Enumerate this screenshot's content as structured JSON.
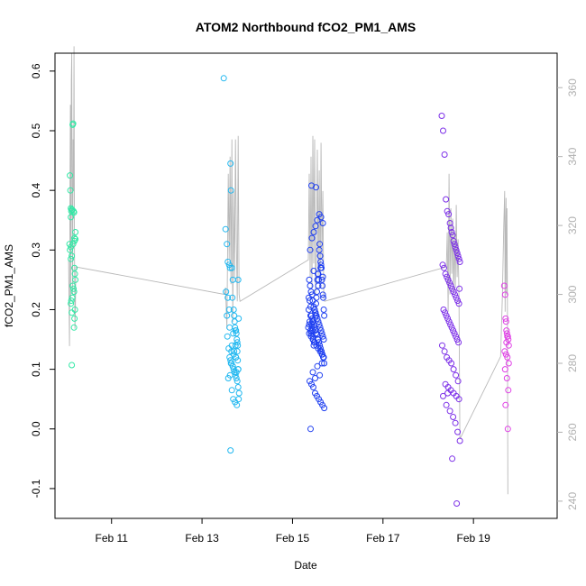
{
  "chart_data": {
    "type": "scatter",
    "title": "ATOM2 Northbound fCO2_PM1_AMS",
    "xlabel": "Date",
    "ylabel": "fCO2_PM1_AMS",
    "x_unit": "day of February",
    "x_ticks": [
      {
        "value": 11,
        "label": "Feb 11"
      },
      {
        "value": 13,
        "label": "Feb 13"
      },
      {
        "value": 15,
        "label": "Feb 15"
      },
      {
        "value": 17,
        "label": "Feb 17"
      },
      {
        "value": 19,
        "label": "Feb 19"
      }
    ],
    "xlim": [
      9.75,
      20.85
    ],
    "ylim": [
      -0.15,
      0.63
    ],
    "y_ticks": [
      -0.1,
      0.0,
      0.1,
      0.2,
      0.3,
      0.4,
      0.5,
      0.6
    ],
    "y_tick_labels": [
      "-0.1",
      "0.0",
      "0.1",
      "0.2",
      "0.3",
      "0.4",
      "0.5",
      "0.6"
    ],
    "y2lim": [
      235,
      370
    ],
    "y2_ticks": [
      240,
      260,
      280,
      300,
      320,
      340,
      360
    ],
    "y2_tick_labels": [
      "240",
      "260",
      "280",
      "300",
      "320",
      "340",
      "360"
    ],
    "grid": false,
    "legend": "none",
    "colors": {
      "g1": "#33e8a6",
      "g2": "#22b8f0",
      "g3": "#2040f0",
      "g4": "#7d30e8",
      "g5": "#e040e6",
      "trace": "#b8b8b8",
      "right_axis": "#b0b0b0"
    },
    "series": [
      {
        "color_key": "g1",
        "x": [
          10.08,
          10.09,
          10.1,
          10.1,
          10.11,
          10.12,
          10.13,
          10.14,
          10.15,
          10.16,
          10.17,
          10.18,
          10.2,
          10.2,
          10.07,
          10.08,
          10.1,
          10.12,
          10.15,
          10.18,
          10.18,
          10.19,
          10.1,
          10.14,
          10.16,
          10.17,
          10.19,
          10.11,
          10.13,
          10.1,
          10.12,
          10.18,
          10.17,
          10.12,
          10.2
        ],
        "y": [
          0.425,
          0.4,
          0.37,
          0.355,
          0.365,
          0.368,
          0.367,
          0.51,
          0.512,
          0.365,
          0.363,
          0.32,
          0.33,
          0.318,
          0.31,
          0.3,
          0.305,
          0.29,
          0.31,
          0.315,
          0.27,
          0.26,
          0.285,
          0.24,
          0.235,
          0.23,
          0.2,
          0.215,
          0.22,
          0.21,
          0.195,
          0.185,
          0.17,
          0.107,
          0.25
        ]
      },
      {
        "color_key": "g2",
        "x": [
          13.48,
          13.52,
          13.55,
          13.57,
          13.6,
          13.62,
          13.63,
          13.64,
          13.66,
          13.67,
          13.68,
          13.7,
          13.71,
          13.72,
          13.73,
          13.74,
          13.75,
          13.76,
          13.77,
          13.78,
          13.79,
          13.8,
          13.81,
          13.53,
          13.56,
          13.59,
          13.61,
          13.63,
          13.65,
          13.68,
          13.7,
          13.72,
          13.74,
          13.76,
          13.78,
          13.8,
          13.82,
          13.58,
          13.62,
          13.66,
          13.69,
          13.73,
          13.77,
          13.81,
          13.55,
          13.6,
          13.65,
          13.7,
          13.75,
          13.8,
          13.64,
          13.68,
          13.72,
          13.76,
          13.8,
          13.57,
          13.61,
          13.66,
          13.71,
          13.75,
          13.79,
          13.63,
          13.69,
          13.74,
          13.78
        ],
        "y": [
          0.588,
          0.335,
          0.31,
          0.28,
          0.275,
          0.27,
          0.445,
          0.4,
          0.27,
          0.22,
          0.25,
          0.2,
          0.19,
          0.18,
          0.17,
          0.165,
          0.165,
          0.16,
          0.15,
          0.145,
          0.14,
          0.25,
          0.185,
          0.23,
          0.155,
          0.135,
          0.12,
          0.115,
          0.11,
          0.105,
          0.1,
          0.095,
          0.09,
          0.085,
          0.08,
          0.07,
          0.06,
          0.085,
          0.09,
          0.065,
          0.05,
          0.045,
          0.04,
          0.05,
          0.19,
          0.2,
          0.13,
          0.125,
          0.12,
          0.1,
          0.11,
          0.105,
          0.095,
          0.095,
          0.1,
          0.22,
          0.17,
          0.14,
          0.13,
          0.12,
          0.115,
          -0.036,
          0.16,
          0.14,
          0.13
        ]
      },
      {
        "color_key": "g3",
        "x": [
          15.35,
          15.37,
          15.38,
          15.4,
          15.41,
          15.42,
          15.43,
          15.44,
          15.45,
          15.46,
          15.47,
          15.48,
          15.49,
          15.5,
          15.51,
          15.52,
          15.53,
          15.54,
          15.55,
          15.56,
          15.57,
          15.58,
          15.59,
          15.6,
          15.61,
          15.62,
          15.63,
          15.64,
          15.65,
          15.66,
          15.67,
          15.68,
          15.69,
          15.7,
          15.36,
          15.38,
          15.4,
          15.42,
          15.44,
          15.46,
          15.48,
          15.5,
          15.52,
          15.54,
          15.56,
          15.58,
          15.6,
          15.62,
          15.64,
          15.66,
          15.68,
          15.7,
          15.37,
          15.39,
          15.41,
          15.43,
          15.45,
          15.47,
          15.49,
          15.51,
          15.53,
          15.55,
          15.57,
          15.59,
          15.61,
          15.63,
          15.65,
          15.67,
          15.69,
          15.36,
          15.4,
          15.44,
          15.48,
          15.52,
          15.56,
          15.6,
          15.64,
          15.68,
          15.38,
          15.42,
          15.46,
          15.5,
          15.54,
          15.58,
          15.62,
          15.66,
          15.7,
          15.39,
          15.43,
          15.47,
          15.51,
          15.55,
          15.59,
          15.63,
          15.67,
          15.37,
          15.41,
          15.45,
          15.49,
          15.53,
          15.57,
          15.61,
          15.65,
          15.69,
          15.4,
          15.5,
          15.6,
          15.45,
          15.55,
          15.65,
          15.42,
          15.52,
          15.62,
          15.47,
          15.57,
          15.67
        ],
        "y": [
          0.17,
          0.175,
          0.18,
          0.165,
          0.16,
          0.175,
          0.17,
          0.165,
          0.155,
          0.15,
          0.14,
          0.145,
          0.2,
          0.195,
          0.19,
          0.21,
          0.22,
          0.23,
          0.25,
          0.26,
          0.24,
          0.25,
          0.3,
          0.31,
          0.29,
          0.28,
          0.275,
          0.27,
          0.25,
          0.24,
          0.225,
          0.22,
          0.2,
          0.19,
          0.22,
          0.215,
          0.205,
          0.19,
          0.185,
          0.18,
          0.175,
          0.165,
          0.16,
          0.158,
          0.15,
          0.145,
          0.14,
          0.135,
          0.13,
          0.125,
          0.12,
          0.11,
          0.25,
          0.24,
          0.23,
          0.225,
          0.215,
          0.205,
          0.2,
          0.195,
          0.19,
          0.185,
          0.18,
          0.175,
          0.17,
          0.165,
          0.16,
          0.155,
          0.15,
          0.2,
          0.19,
          0.18,
          0.17,
          0.16,
          0.15,
          0.14,
          0.13,
          0.12,
          0.08,
          0.075,
          0.07,
          0.06,
          0.055,
          0.05,
          0.045,
          0.04,
          0.035,
          0.3,
          0.32,
          0.33,
          0.34,
          0.35,
          0.36,
          0.355,
          0.345,
          0.16,
          0.155,
          0.15,
          0.145,
          0.14,
          0.135,
          0.13,
          0.125,
          0.12,
          0.0,
          0.085,
          0.09,
          0.095,
          0.105,
          0.11,
          0.408,
          0.405,
          0.27,
          0.265,
          0.26,
          0.255
        ]
      },
      {
        "color_key": "g4",
        "x": [
          18.3,
          18.33,
          18.36,
          18.39,
          18.42,
          18.45,
          18.48,
          18.5,
          18.52,
          18.54,
          18.56,
          18.58,
          18.6,
          18.62,
          18.64,
          18.66,
          18.68,
          18.7,
          18.32,
          18.35,
          18.38,
          18.41,
          18.44,
          18.47,
          18.5,
          18.53,
          18.56,
          18.59,
          18.62,
          18.65,
          18.68,
          18.34,
          18.37,
          18.4,
          18.43,
          18.46,
          18.49,
          18.52,
          18.55,
          18.58,
          18.61,
          18.64,
          18.67,
          18.31,
          18.36,
          18.41,
          18.46,
          18.51,
          18.56,
          18.61,
          18.66,
          18.38,
          18.44,
          18.5,
          18.56,
          18.62,
          18.68,
          18.4,
          18.48,
          18.55,
          18.6,
          18.65,
          18.7,
          18.33,
          18.43,
          18.53,
          18.63,
          18.69
        ],
        "y": [
          0.525,
          0.5,
          0.46,
          0.385,
          0.365,
          0.36,
          0.345,
          0.337,
          0.33,
          0.325,
          0.315,
          0.31,
          0.305,
          0.3,
          0.295,
          0.29,
          0.285,
          0.28,
          0.275,
          0.27,
          0.26,
          0.255,
          0.25,
          0.245,
          0.24,
          0.235,
          0.23,
          0.225,
          0.22,
          0.215,
          0.21,
          0.2,
          0.195,
          0.19,
          0.185,
          0.18,
          0.175,
          0.17,
          0.165,
          0.16,
          0.155,
          0.15,
          0.145,
          0.14,
          0.13,
          0.12,
          0.115,
          0.11,
          0.1,
          0.09,
          0.08,
          0.075,
          0.07,
          0.065,
          0.06,
          0.055,
          0.05,
          0.04,
          0.03,
          0.02,
          0.01,
          -0.005,
          -0.02,
          0.055,
          0.06,
          -0.05,
          -0.125,
          0.235
        ]
      },
      {
        "color_key": "g5",
        "x": [
          19.68,
          19.7,
          19.71,
          19.72,
          19.73,
          19.74,
          19.75,
          19.76,
          19.77,
          19.78,
          19.69,
          19.72,
          19.75,
          19.78,
          19.7,
          19.74,
          19.77,
          19.71,
          19.76,
          19.73
        ],
        "y": [
          0.24,
          0.225,
          0.185,
          0.18,
          0.165,
          0.16,
          0.155,
          0.155,
          0.15,
          0.14,
          0.13,
          0.125,
          0.12,
          0.11,
          0.1,
          0.085,
          0.065,
          0.04,
          0.0,
          0.145
        ]
      }
    ],
    "trace_line": {
      "y_axis": "right",
      "x": [
        10.05,
        10.07,
        10.08,
        10.09,
        10.1,
        10.11,
        10.12,
        10.13,
        10.14,
        10.15,
        10.16,
        10.17,
        10.18,
        10.19,
        10.2,
        10.21,
        13.5,
        13.52,
        13.55,
        13.58,
        13.6,
        13.62,
        13.64,
        13.66,
        13.68,
        13.7,
        13.72,
        13.74,
        13.76,
        13.78,
        13.8,
        13.82,
        13.84,
        15.35,
        15.37,
        15.39,
        15.41,
        15.43,
        15.45,
        15.47,
        15.49,
        15.51,
        15.53,
        15.55,
        15.57,
        15.59,
        15.61,
        15.63,
        15.65,
        15.67,
        15.69,
        15.71,
        18.4,
        18.42,
        18.44,
        18.46,
        18.48,
        18.5,
        18.52,
        18.54,
        18.56,
        18.58,
        18.6,
        18.62,
        18.64,
        18.66,
        18.68,
        18.7,
        19.6,
        19.64,
        19.67,
        19.69,
        19.7,
        19.71,
        19.72,
        19.73,
        19.74,
        19.75,
        19.76
      ],
      "y": [
        310,
        285,
        330,
        355,
        298,
        362,
        370,
        325,
        300,
        345,
        330,
        372,
        315,
        290,
        295,
        308,
        300,
        302,
        290,
        335,
        310,
        340,
        303,
        345,
        292,
        330,
        305,
        345,
        315,
        298,
        346,
        300,
        298,
        310,
        335,
        305,
        340,
        302,
        346,
        309,
        345,
        300,
        312,
        342,
        305,
        336,
        302,
        344,
        310,
        330,
        300,
        298,
        308,
        318,
        295,
        335,
        300,
        325,
        306,
        322,
        300,
        318,
        302,
        326,
        305,
        316,
        300,
        258,
        282,
        300,
        320,
        330,
        295,
        318,
        328,
        300,
        325,
        300,
        242
      ]
    }
  }
}
